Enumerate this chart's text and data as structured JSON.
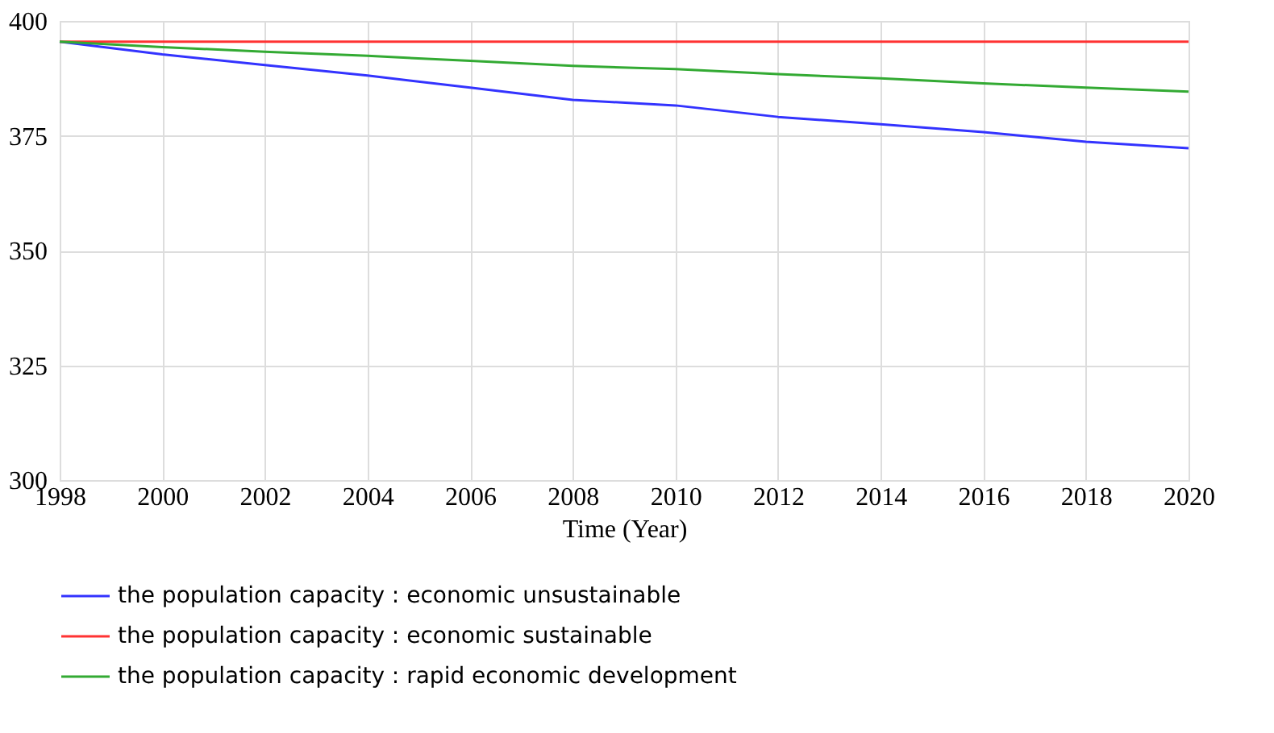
{
  "chart_data": {
    "type": "line",
    "xlabel": "Time (Year)",
    "x": [
      1998,
      2000,
      2002,
      2004,
      2006,
      2008,
      2010,
      2012,
      2014,
      2016,
      2018,
      2020
    ],
    "series": [
      {
        "name": "the population capacity :   economic unsustainable",
        "color": "#3333ff",
        "values": [
          395.5,
          392.7,
          390.4,
          388.1,
          385.5,
          382.8,
          381.6,
          379.1,
          377.5,
          375.8,
          373.7,
          372.3
        ]
      },
      {
        "name": "the population capacity :   economic sustainable",
        "color": "#ff3333",
        "values": [
          395.5,
          395.5,
          395.5,
          395.5,
          395.5,
          395.5,
          395.5,
          395.5,
          395.5,
          395.5,
          395.5,
          395.5
        ]
      },
      {
        "name": "the population capacity :  rapid economic development",
        "color": "#33aa33",
        "values": [
          395.5,
          394.3,
          393.3,
          392.4,
          391.3,
          390.2,
          389.5,
          388.4,
          387.5,
          386.4,
          385.5,
          384.6
        ]
      }
    ],
    "xlim": [
      1998,
      2020
    ],
    "xticks": [
      1998,
      2000,
      2002,
      2004,
      2006,
      2008,
      2010,
      2012,
      2014,
      2016,
      2018,
      2020
    ],
    "ylim": [
      300,
      400
    ],
    "yticks": [
      300,
      325,
      350,
      375,
      400
    ],
    "grid": true,
    "legend": "bottom",
    "marker": "none",
    "line_style": "solid"
  }
}
